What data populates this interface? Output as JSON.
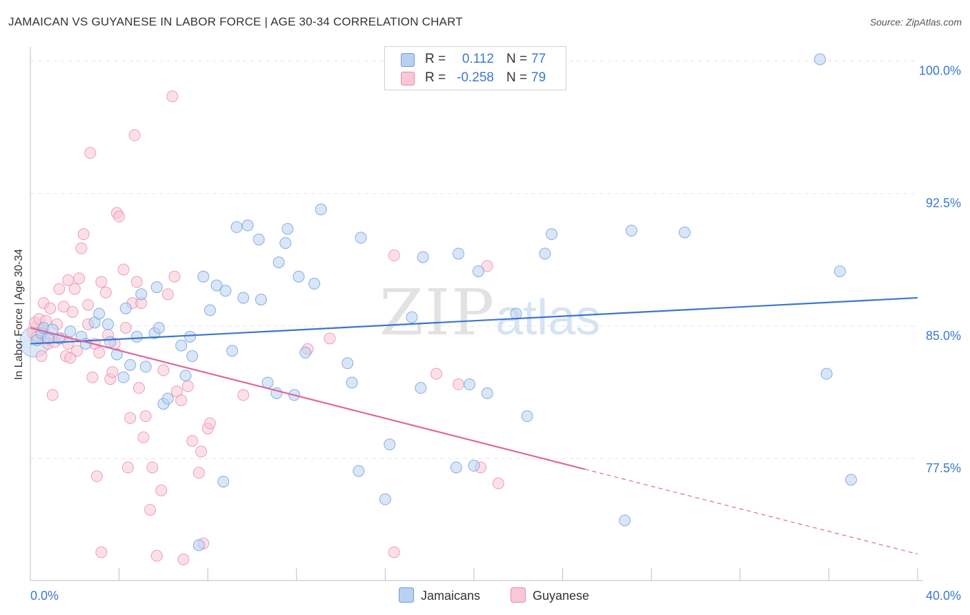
{
  "title": "JAMAICAN VS GUYANESE IN LABOR FORCE | AGE 30-34 CORRELATION CHART",
  "source": "Source: ZipAtlas.com",
  "watermark": {
    "zip": "ZIP",
    "atlas": "atlas"
  },
  "colors": {
    "blue_fill": "#b8d1f3",
    "blue_stroke": "#6f9bd8",
    "blue_line": "#3a75d0",
    "pink_fill": "#f9c7d6",
    "pink_stroke": "#e98aaa",
    "pink_line": "#e0659a",
    "axis_text": "#3b78d6",
    "grid": "#e4e4e4"
  },
  "stats": [
    {
      "label": "R =",
      "r": "0.112",
      "n_label": "N =",
      "n": "77",
      "color": "#b8d1f3",
      "border": "#6f9bd8"
    },
    {
      "label": "R =",
      "r": "-0.258",
      "n_label": "N =",
      "n": "79",
      "color": "#f9c7d6",
      "border": "#e98aaa"
    }
  ],
  "legend": [
    {
      "name": "Jamaicans",
      "color": "#b8d1f3",
      "border": "#6f9bd8"
    },
    {
      "name": "Guyanese",
      "color": "#f9c7d6",
      "border": "#e98aaa"
    }
  ],
  "chart_data": {
    "type": "scatter",
    "title": "JAMAICAN VS GUYANESE IN LABOR FORCE | AGE 30-34 CORRELATION CHART",
    "xlabel": "",
    "ylabel": "In Labor Force | Age 30-34",
    "xlim": [
      0,
      40
    ],
    "ylim": [
      70.6,
      100.8
    ],
    "x_tick_labels": [
      "0.0%",
      "40.0%"
    ],
    "y_ticks": [
      77.5,
      85.0,
      92.5,
      100.0
    ],
    "y_tick_labels": [
      "77.5%",
      "85.0%",
      "92.5%",
      "100.0%"
    ],
    "series": [
      {
        "name": "Jamaicans",
        "points": [
          [
            0.3,
            84.2
          ],
          [
            0.5,
            84.6
          ],
          [
            0.6,
            84.9
          ],
          [
            0.8,
            84.3
          ],
          [
            1.0,
            84.8
          ],
          [
            1.3,
            84.3
          ],
          [
            1.8,
            84.7
          ],
          [
            2.3,
            84.4
          ],
          [
            2.5,
            84.0
          ],
          [
            2.9,
            85.2
          ],
          [
            3.1,
            85.7
          ],
          [
            3.5,
            85.1
          ],
          [
            3.6,
            84.1
          ],
          [
            3.9,
            83.4
          ],
          [
            4.2,
            82.1
          ],
          [
            4.3,
            86.0
          ],
          [
            4.5,
            82.8
          ],
          [
            4.8,
            84.4
          ],
          [
            5.0,
            86.8
          ],
          [
            5.2,
            82.7
          ],
          [
            5.6,
            84.6
          ],
          [
            5.7,
            87.2
          ],
          [
            5.8,
            84.9
          ],
          [
            6.0,
            80.6
          ],
          [
            6.2,
            80.9
          ],
          [
            6.8,
            83.9
          ],
          [
            7.0,
            82.2
          ],
          [
            7.2,
            84.4
          ],
          [
            7.3,
            83.3
          ],
          [
            7.6,
            72.6
          ],
          [
            7.8,
            87.8
          ],
          [
            8.1,
            85.9
          ],
          [
            8.4,
            87.3
          ],
          [
            8.7,
            76.2
          ],
          [
            8.8,
            87.0
          ],
          [
            9.1,
            83.6
          ],
          [
            9.3,
            90.6
          ],
          [
            9.6,
            86.6
          ],
          [
            9.8,
            90.7
          ],
          [
            10.3,
            89.9
          ],
          [
            10.4,
            86.5
          ],
          [
            10.7,
            81.8
          ],
          [
            11.1,
            81.2
          ],
          [
            11.2,
            88.6
          ],
          [
            11.5,
            89.7
          ],
          [
            11.6,
            90.5
          ],
          [
            11.9,
            81.1
          ],
          [
            12.1,
            87.8
          ],
          [
            12.4,
            83.5
          ],
          [
            12.8,
            87.4
          ],
          [
            13.1,
            91.6
          ],
          [
            14.3,
            82.9
          ],
          [
            14.5,
            81.8
          ],
          [
            14.8,
            76.8
          ],
          [
            14.9,
            90.0
          ],
          [
            16.0,
            75.2
          ],
          [
            16.2,
            78.3
          ],
          [
            17.2,
            85.5
          ],
          [
            17.6,
            81.5
          ],
          [
            17.7,
            88.9
          ],
          [
            19.2,
            77.0
          ],
          [
            19.3,
            89.1
          ],
          [
            19.8,
            81.7
          ],
          [
            20.0,
            77.1
          ],
          [
            20.2,
            88.1
          ],
          [
            20.6,
            81.2
          ],
          [
            21.9,
            85.7
          ],
          [
            22.4,
            79.9
          ],
          [
            23.2,
            89.1
          ],
          [
            23.5,
            90.2
          ],
          [
            26.8,
            74.0
          ],
          [
            27.1,
            90.4
          ],
          [
            35.6,
            100.1
          ],
          [
            35.9,
            82.3
          ],
          [
            37.0,
            76.3
          ],
          [
            36.5,
            88.1
          ],
          [
            29.5,
            90.3
          ]
        ]
      },
      {
        "name": "Guyanese",
        "points": [
          [
            0.2,
            85.2
          ],
          [
            0.3,
            84.4
          ],
          [
            0.4,
            85.4
          ],
          [
            0.5,
            83.3
          ],
          [
            0.6,
            86.3
          ],
          [
            0.7,
            85.3
          ],
          [
            0.8,
            84.0
          ],
          [
            0.9,
            86.0
          ],
          [
            1.0,
            81.1
          ],
          [
            1.1,
            84.1
          ],
          [
            1.2,
            85.1
          ],
          [
            1.3,
            87.1
          ],
          [
            1.4,
            84.3
          ],
          [
            1.5,
            86.1
          ],
          [
            1.6,
            83.3
          ],
          [
            1.7,
            84.0
          ],
          [
            1.7,
            87.6
          ],
          [
            1.8,
            83.2
          ],
          [
            1.9,
            85.8
          ],
          [
            2.0,
            87.1
          ],
          [
            2.1,
            83.6
          ],
          [
            2.2,
            87.7
          ],
          [
            2.3,
            89.4
          ],
          [
            2.4,
            90.2
          ],
          [
            2.6,
            85.1
          ],
          [
            2.6,
            86.2
          ],
          [
            2.7,
            94.8
          ],
          [
            2.8,
            82.1
          ],
          [
            2.9,
            84.0
          ],
          [
            3.0,
            76.5
          ],
          [
            3.1,
            83.5
          ],
          [
            3.2,
            72.2
          ],
          [
            3.2,
            87.5
          ],
          [
            3.4,
            86.9
          ],
          [
            3.5,
            84.5
          ],
          [
            3.6,
            82.0
          ],
          [
            3.7,
            82.4
          ],
          [
            3.8,
            84.0
          ],
          [
            3.9,
            91.4
          ],
          [
            4.0,
            91.2
          ],
          [
            4.2,
            88.2
          ],
          [
            4.3,
            84.9
          ],
          [
            4.4,
            77.0
          ],
          [
            4.5,
            79.8
          ],
          [
            4.6,
            86.3
          ],
          [
            4.7,
            95.8
          ],
          [
            4.8,
            87.5
          ],
          [
            4.9,
            81.5
          ],
          [
            5.0,
            86.3
          ],
          [
            5.1,
            78.7
          ],
          [
            5.2,
            79.9
          ],
          [
            5.4,
            74.6
          ],
          [
            5.5,
            77.0
          ],
          [
            5.7,
            72.0
          ],
          [
            5.9,
            75.7
          ],
          [
            6.0,
            82.5
          ],
          [
            6.2,
            86.8
          ],
          [
            6.4,
            98.0
          ],
          [
            6.5,
            87.8
          ],
          [
            6.6,
            81.3
          ],
          [
            6.8,
            80.8
          ],
          [
            6.9,
            71.8
          ],
          [
            7.1,
            81.6
          ],
          [
            7.3,
            78.5
          ],
          [
            7.6,
            76.7
          ],
          [
            7.7,
            77.9
          ],
          [
            7.8,
            72.7
          ],
          [
            8.0,
            79.2
          ],
          [
            8.1,
            79.5
          ],
          [
            9.6,
            81.1
          ],
          [
            12.5,
            83.7
          ],
          [
            13.5,
            84.3
          ],
          [
            16.4,
            72.2
          ],
          [
            16.4,
            89.0
          ],
          [
            18.3,
            82.3
          ],
          [
            19.3,
            81.7
          ],
          [
            20.3,
            77.0
          ],
          [
            20.6,
            88.4
          ],
          [
            21.1,
            76.1
          ]
        ]
      }
    ],
    "trend_lines": [
      {
        "series": "Jamaicans",
        "x": [
          0,
          40
        ],
        "y": [
          84.0,
          86.6
        ],
        "dashed_from": null
      },
      {
        "series": "Guyanese",
        "x": [
          0,
          40
        ],
        "y": [
          84.9,
          72.1
        ],
        "dashed_from": 25.0
      }
    ]
  }
}
